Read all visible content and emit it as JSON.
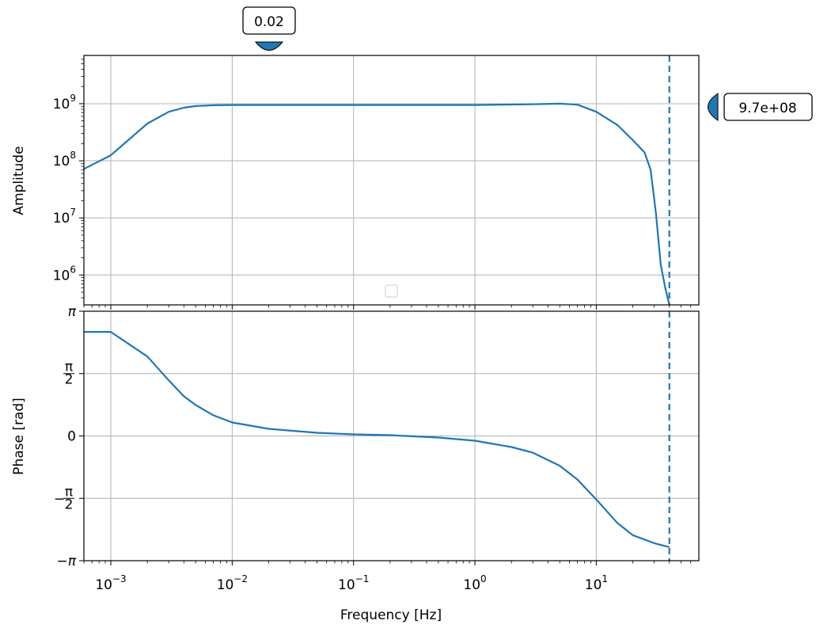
{
  "chart_data": [
    {
      "type": "line",
      "ylabel": "Amplitude",
      "xscale": "log",
      "yscale": "log",
      "xlim": [
        0.0006,
        70
      ],
      "ylim": [
        300000,
        7000000000
      ],
      "grid": true,
      "x_ticks": [
        {
          "value": 0.001,
          "base": "10",
          "exp": "−3"
        },
        {
          "value": 0.01,
          "base": "10",
          "exp": "−2"
        },
        {
          "value": 0.1,
          "base": "10",
          "exp": "−1"
        },
        {
          "value": 1,
          "base": "10",
          "exp": "0"
        },
        {
          "value": 10,
          "base": "10",
          "exp": "1"
        }
      ],
      "y_ticks": [
        {
          "value": 1000000,
          "base": "10",
          "exp": "6"
        },
        {
          "value": 10000000,
          "base": "10",
          "exp": "7"
        },
        {
          "value": 100000000,
          "base": "10",
          "exp": "8"
        },
        {
          "value": 1000000000,
          "base": "10",
          "exp": "9"
        }
      ],
      "series": [
        {
          "color": "#1f77b4",
          "x": [
            0.0006,
            0.001,
            0.002,
            0.003,
            0.004,
            0.005,
            0.007,
            0.01,
            0.05,
            0.1,
            0.5,
            1,
            3,
            5,
            7,
            10,
            15,
            20,
            25,
            28,
            31,
            34,
            37,
            40
          ],
          "y": [
            72000000,
            125000000,
            450000000,
            720000000,
            850000000,
            910000000,
            940000000,
            950000000,
            950000000,
            950000000,
            950000000,
            950000000,
            980000000,
            1000000000,
            960000000,
            720000000,
            420000000,
            230000000,
            140000000,
            70000000,
            12000000,
            1500000,
            600000,
            300000
          ]
        }
      ],
      "vline": {
        "x": 40,
        "style": "dashed",
        "color": "#1f77b4"
      },
      "markers": {
        "top": {
          "text": "0.02",
          "x": 0.02
        },
        "right": {
          "text": "9.7e+08",
          "y": 970000000
        }
      }
    },
    {
      "type": "line",
      "xlabel": "Frequency [Hz]",
      "ylabel": "Phase [rad]",
      "xscale": "log",
      "xlim": [
        0.0006,
        70
      ],
      "ylim": [
        -3.14159,
        3.14159
      ],
      "grid": true,
      "y_ticks": [
        {
          "value": 3.14159,
          "label": "π"
        },
        {
          "value": 1.5708,
          "label": "π/2"
        },
        {
          "value": 0,
          "label": "0"
        },
        {
          "value": -1.5708,
          "label": "−π/2"
        },
        {
          "value": -3.14159,
          "label": "−π"
        }
      ],
      "series": [
        {
          "color": "#1f77b4",
          "x": [
            0.0006,
            0.001,
            0.002,
            0.003,
            0.004,
            0.005,
            0.007,
            0.01,
            0.02,
            0.05,
            0.1,
            0.2,
            0.5,
            1,
            2,
            3,
            5,
            7,
            10,
            15,
            20,
            30,
            40
          ],
          "y": [
            2.62,
            2.62,
            2.0,
            1.4,
            1.0,
            0.78,
            0.52,
            0.34,
            0.18,
            0.08,
            0.04,
            0.02,
            -0.04,
            -0.12,
            -0.28,
            -0.42,
            -0.75,
            -1.1,
            -1.6,
            -2.2,
            -2.5,
            -2.7,
            -2.8
          ]
        }
      ],
      "vline": {
        "x": 40,
        "style": "dashed",
        "color": "#1f77b4"
      }
    }
  ]
}
